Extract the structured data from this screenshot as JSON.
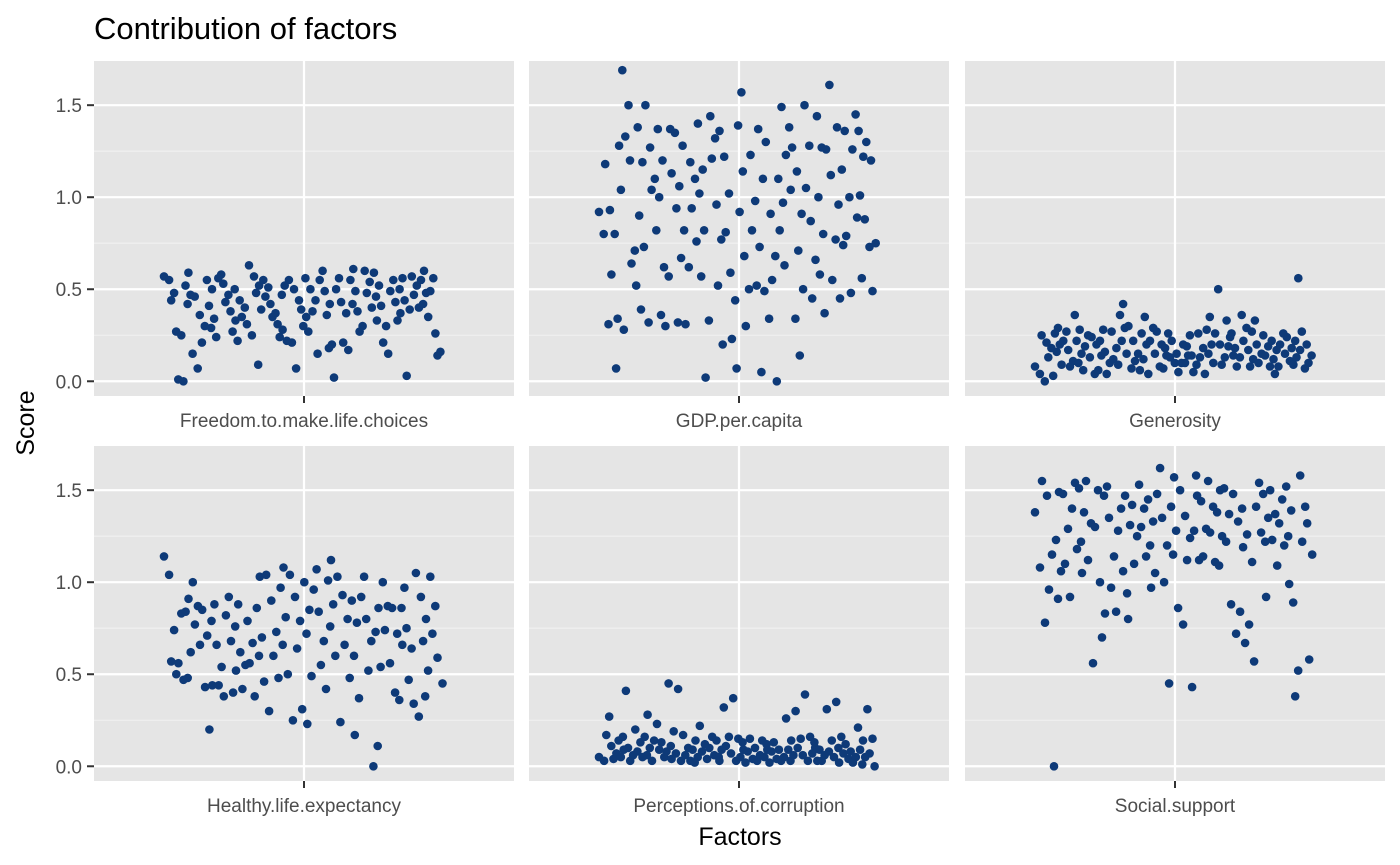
{
  "chart_data": {
    "type": "scatter",
    "title": "Contribution of factors",
    "xlabel": "Factors",
    "ylabel": "Score",
    "ylim": [
      -0.08,
      1.74
    ],
    "yticks": [
      0.0,
      0.5,
      1.0,
      1.5
    ],
    "ytick_labels": [
      "0.0",
      "0.5",
      "1.0",
      "1.5"
    ],
    "grid": true,
    "point_color": "#0e3a78",
    "panel_background": "#e5e5e5",
    "jitter": "horizontal",
    "panels": [
      {
        "name": "Freedom.to.make.life.choices",
        "values": [
          0.57,
          0.55,
          0.48,
          0.44,
          0.27,
          0.25,
          0.01,
          0.0,
          0.59,
          0.52,
          0.47,
          0.42,
          0.15,
          0.07,
          0.46,
          0.36,
          0.3,
          0.21,
          0.55,
          0.5,
          0.41,
          0.34,
          0.29,
          0.24,
          0.58,
          0.56,
          0.53,
          0.47,
          0.43,
          0.38,
          0.33,
          0.27,
          0.22,
          0.5,
          0.44,
          0.4,
          0.35,
          0.31,
          0.25,
          0.63,
          0.57,
          0.52,
          0.48,
          0.39,
          0.09,
          0.55,
          0.51,
          0.46,
          0.42,
          0.37,
          0.35,
          0.31,
          0.28,
          0.24,
          0.52,
          0.47,
          0.22,
          0.21,
          0.55,
          0.5,
          0.44,
          0.07,
          0.39,
          0.35,
          0.3,
          0.27,
          0.56,
          0.5,
          0.44,
          0.38,
          0.15,
          0.6,
          0.55,
          0.49,
          0.42,
          0.36,
          0.2,
          0.18,
          0.02,
          0.56,
          0.5,
          0.43,
          0.37,
          0.21,
          0.17,
          0.61,
          0.55,
          0.49,
          0.42,
          0.38,
          0.3,
          0.27,
          0.6,
          0.54,
          0.48,
          0.4,
          0.33,
          0.59,
          0.52,
          0.46,
          0.41,
          0.3,
          0.21,
          0.15,
          0.55,
          0.49,
          0.43,
          0.37,
          0.33,
          0.56,
          0.5,
          0.44,
          0.39,
          0.03,
          0.57,
          0.52,
          0.47,
          0.4,
          0.6,
          0.55,
          0.48,
          0.42,
          0.35,
          0.56,
          0.49,
          0.26,
          0.16,
          0.14
        ]
      },
      {
        "name": "GDP.per.capita",
        "values": [
          0.92,
          0.8,
          0.31,
          1.18,
          0.93,
          0.8,
          0.58,
          0.07,
          1.04,
          0.34,
          1.69,
          1.28,
          0.28,
          1.5,
          1.33,
          1.2,
          0.71,
          0.64,
          0.52,
          0.39,
          1.38,
          1.19,
          0.9,
          0.73,
          0.32,
          1.5,
          1.27,
          1.1,
          1.04,
          0.82,
          0.36,
          1.37,
          1.2,
          1.0,
          0.62,
          0.57,
          0.3,
          1.37,
          1.35,
          1.13,
          0.94,
          0.67,
          0.32,
          1.28,
          1.06,
          0.82,
          0.62,
          0.31,
          1.19,
          1.1,
          0.94,
          0.76,
          0.57,
          1.4,
          1.15,
          1.02,
          0.82,
          0.33,
          0.02,
          1.44,
          1.32,
          1.21,
          0.96,
          0.77,
          0.52,
          0.2,
          1.36,
          1.22,
          1.02,
          0.81,
          0.59,
          0.44,
          0.23,
          0.07,
          1.57,
          1.39,
          1.14,
          0.92,
          0.68,
          0.5,
          0.3,
          1.23,
          0.98,
          0.82,
          0.52,
          0.05,
          1.37,
          1.1,
          0.73,
          0.49,
          0.34,
          1.3,
          0.91,
          0.68,
          0.55,
          0.0,
          1.49,
          1.1,
          0.97,
          0.82,
          0.63,
          1.38,
          1.23,
          1.04,
          0.34,
          1.27,
          1.14,
          0.91,
          0.71,
          0.5,
          0.14,
          1.5,
          1.28,
          1.05,
          0.87,
          0.66,
          0.45,
          1.44,
          1.27,
          1.0,
          0.8,
          0.58,
          0.37,
          1.61,
          1.26,
          1.12,
          0.77,
          0.55,
          1.38,
          1.15,
          0.96,
          0.74,
          0.45,
          1.36,
          1.0,
          0.79,
          0.48,
          1.45,
          1.26,
          0.89,
          0.56,
          1.36,
          1.22,
          1.01,
          0.88,
          0.73,
          1.3,
          1.2,
          0.75,
          0.49
        ]
      },
      {
        "name": "Generosity",
        "values": [
          0.08,
          0.04,
          0.0,
          0.25,
          0.21,
          0.18,
          0.13,
          0.03,
          0.29,
          0.26,
          0.2,
          0.16,
          0.09,
          0.27,
          0.22,
          0.17,
          0.11,
          0.08,
          0.36,
          0.28,
          0.22,
          0.15,
          0.1,
          0.06,
          0.25,
          0.19,
          0.13,
          0.04,
          0.24,
          0.2,
          0.14,
          0.06,
          0.28,
          0.22,
          0.16,
          0.1,
          0.04,
          0.27,
          0.18,
          0.12,
          0.09,
          0.42,
          0.36,
          0.29,
          0.22,
          0.15,
          0.07,
          0.3,
          0.22,
          0.15,
          0.11,
          0.06,
          0.35,
          0.26,
          0.2,
          0.12,
          0.04,
          0.29,
          0.22,
          0.15,
          0.08,
          0.27,
          0.2,
          0.14,
          0.07,
          0.26,
          0.18,
          0.13,
          0.1,
          0.22,
          0.15,
          0.1,
          0.05,
          0.2,
          0.14,
          0.1,
          0.25,
          0.19,
          0.14,
          0.09,
          0.05,
          0.26,
          0.18,
          0.13,
          0.04,
          0.35,
          0.28,
          0.2,
          0.15,
          0.1,
          0.5,
          0.26,
          0.2,
          0.13,
          0.09,
          0.33,
          0.26,
          0.19,
          0.14,
          0.24,
          0.18,
          0.13,
          0.08,
          0.36,
          0.29,
          0.22,
          0.17,
          0.12,
          0.08,
          0.33,
          0.27,
          0.2,
          0.15,
          0.1,
          0.25,
          0.19,
          0.14,
          0.08,
          0.04,
          0.22,
          0.17,
          0.12,
          0.08,
          0.26,
          0.2,
          0.15,
          0.11,
          0.24,
          0.18,
          0.13,
          0.09,
          0.56,
          0.22,
          0.17,
          0.07,
          0.27,
          0.2,
          0.14,
          0.1
        ]
      },
      {
        "name": "Healthy.life.expectancy",
        "values": [
          1.14,
          1.04,
          0.74,
          0.57,
          0.5,
          0.83,
          0.56,
          0.47,
          0.91,
          0.84,
          0.62,
          0.48,
          1.0,
          0.87,
          0.77,
          0.66,
          0.43,
          0.85,
          0.71,
          0.44,
          0.2,
          0.88,
          0.79,
          0.66,
          0.54,
          0.44,
          0.38,
          0.92,
          0.82,
          0.68,
          0.52,
          0.4,
          0.88,
          0.76,
          0.62,
          0.55,
          0.42,
          0.79,
          0.67,
          0.56,
          0.38,
          1.03,
          0.86,
          0.7,
          0.6,
          0.46,
          0.3,
          1.04,
          0.9,
          0.73,
          0.6,
          0.48,
          1.08,
          0.97,
          0.81,
          0.66,
          0.5,
          0.25,
          1.04,
          0.92,
          0.79,
          0.64,
          0.31,
          0.23,
          1.0,
          0.85,
          0.72,
          0.49,
          1.07,
          0.96,
          0.84,
          0.68,
          0.55,
          0.42,
          1.12,
          1.01,
          0.88,
          0.76,
          0.6,
          0.24,
          1.03,
          0.93,
          0.8,
          0.66,
          0.48,
          0.17,
          0.9,
          0.78,
          0.6,
          0.37,
          1.03,
          0.92,
          0.8,
          0.68,
          0.52,
          0.0,
          0.86,
          0.73,
          0.54,
          0.11,
          1.0,
          0.87,
          0.74,
          0.56,
          0.4,
          0.86,
          0.72,
          0.66,
          0.36,
          0.97,
          0.86,
          0.75,
          0.64,
          0.47,
          0.34,
          0.27,
          1.05,
          0.92,
          0.8,
          0.68,
          0.52,
          0.38,
          1.03,
          0.87,
          0.72,
          0.59,
          0.45
        ]
      },
      {
        "name": "Perceptions.of.corruption",
        "values": [
          0.05,
          0.03,
          0.27,
          0.17,
          0.11,
          0.07,
          0.04,
          0.14,
          0.09,
          0.05,
          0.41,
          0.16,
          0.1,
          0.06,
          0.03,
          0.2,
          0.13,
          0.08,
          0.05,
          0.28,
          0.16,
          0.1,
          0.06,
          0.03,
          0.23,
          0.14,
          0.09,
          0.05,
          0.13,
          0.08,
          0.04,
          0.45,
          0.19,
          0.11,
          0.07,
          0.03,
          0.42,
          0.17,
          0.1,
          0.06,
          0.03,
          0.14,
          0.09,
          0.05,
          0.02,
          0.22,
          0.12,
          0.08,
          0.04,
          0.16,
          0.1,
          0.06,
          0.03,
          0.14,
          0.09,
          0.05,
          0.32,
          0.16,
          0.11,
          0.07,
          0.03,
          0.37,
          0.15,
          0.09,
          0.05,
          0.02,
          0.13,
          0.08,
          0.04,
          0.15,
          0.1,
          0.06,
          0.03,
          0.14,
          0.09,
          0.05,
          0.02,
          0.12,
          0.08,
          0.04,
          0.13,
          0.09,
          0.05,
          0.03,
          0.26,
          0.14,
          0.09,
          0.06,
          0.03,
          0.3,
          0.15,
          0.1,
          0.06,
          0.03,
          0.39,
          0.16,
          0.1,
          0.07,
          0.03,
          0.13,
          0.09,
          0.06,
          0.03,
          0.31,
          0.14,
          0.08,
          0.05,
          0.02,
          0.35,
          0.16,
          0.1,
          0.07,
          0.04,
          0.12,
          0.08,
          0.05,
          0.02,
          0.21,
          0.14,
          0.09,
          0.05,
          0.01,
          0.31,
          0.15,
          0.07,
          0.0
        ]
      },
      {
        "name": "Social.support",
        "values": [
          1.38,
          1.08,
          0.78,
          1.55,
          1.47,
          1.15,
          0.96,
          0.0,
          1.49,
          1.23,
          1.06,
          0.91,
          1.48,
          1.29,
          1.1,
          0.92,
          1.54,
          1.4,
          1.18,
          1.05,
          1.51,
          1.38,
          1.22,
          1.55,
          1.32,
          1.12,
          0.56,
          1.5,
          1.3,
          1.0,
          0.83,
          0.7,
          1.52,
          1.47,
          1.35,
          1.14,
          0.97,
          0.84,
          1.4,
          1.28,
          1.06,
          0.8,
          1.47,
          1.31,
          0.94,
          1.42,
          1.25,
          1.1,
          1.53,
          1.4,
          1.3,
          1.14,
          0.97,
          1.45,
          1.33,
          1.2,
          1.05,
          1.62,
          1.48,
          1.35,
          1.2,
          1.0,
          0.45,
          1.57,
          1.41,
          1.28,
          1.15,
          0.86,
          0.77,
          1.5,
          1.36,
          1.24,
          1.12,
          0.43,
          1.47,
          1.28,
          1.12,
          1.58,
          1.44,
          1.29,
          1.14,
          1.55,
          1.41,
          1.27,
          1.11,
          1.5,
          1.38,
          1.25,
          1.09,
          1.51,
          1.37,
          1.22,
          0.88,
          0.72,
          1.48,
          1.33,
          1.19,
          0.84,
          0.67,
          1.4,
          1.26,
          1.11,
          0.77,
          0.57,
          1.54,
          1.41,
          1.27,
          0.92,
          1.48,
          1.35,
          1.22,
          1.5,
          1.37,
          1.23,
          1.09,
          1.45,
          1.32,
          1.2,
          0.99,
          1.52,
          1.39,
          1.25,
          0.89,
          0.52,
          0.38,
          1.58,
          1.41,
          1.22,
          1.32,
          1.15,
          0.58
        ]
      }
    ]
  }
}
